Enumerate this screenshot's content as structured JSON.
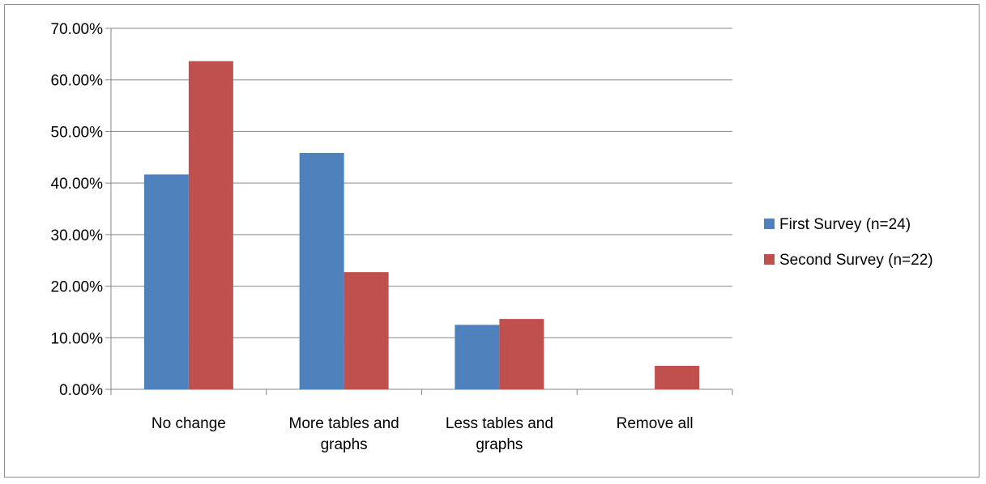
{
  "chart_data": {
    "type": "bar",
    "categories": [
      [
        "No change"
      ],
      [
        "More tables and",
        "graphs"
      ],
      [
        "Less tables and",
        "graphs"
      ],
      [
        "Remove all"
      ]
    ],
    "series": [
      {
        "name": "First Survey (n=24)",
        "color": "#4f81bd",
        "values": [
          41.67,
          45.83,
          12.5,
          0
        ]
      },
      {
        "name": "Second Survey (n=22)",
        "color": "#c0504d",
        "values": [
          63.64,
          22.73,
          13.64,
          4.55
        ]
      }
    ],
    "y_ticks": [
      "0.00%",
      "10.00%",
      "20.00%",
      "30.00%",
      "40.00%",
      "50.00%",
      "60.00%",
      "70.00%"
    ],
    "ylim": [
      0,
      70
    ],
    "grid": true,
    "legend_position": "right"
  }
}
